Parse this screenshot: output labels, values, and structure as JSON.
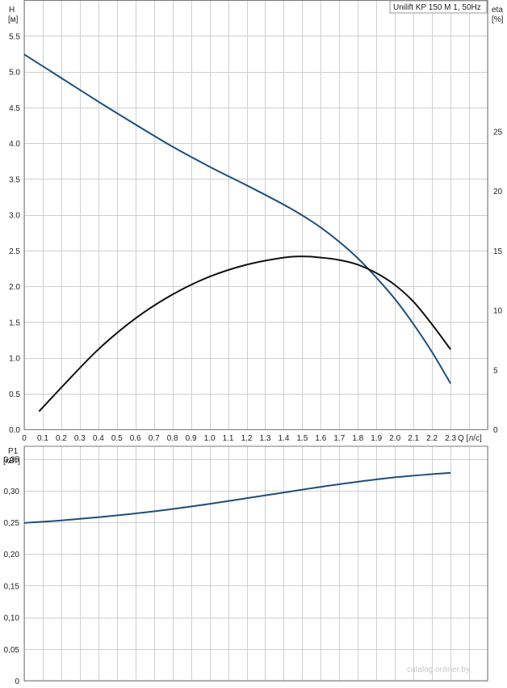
{
  "chart_data": [
    {
      "type": "line",
      "title": "Unilift KP 150 M 1, 50Hz",
      "xlabel": "Q [л/с]",
      "ylabel": "H [м]",
      "y2label": "eta [%]",
      "xlim": [
        0,
        2.5
      ],
      "ylim": [
        0,
        6
      ],
      "y2lim": [
        0,
        36
      ],
      "grid": true,
      "x_ticks": [
        "0",
        "0.1",
        "0.2",
        "0.3",
        "0.4",
        "0.5",
        "0.6",
        "0.7",
        "0.8",
        "0.9",
        "1.0",
        "1.1",
        "1.2",
        "1.3",
        "1.4",
        "1.5",
        "1.6",
        "1.7",
        "1.8",
        "1.9",
        "2.0",
        "2.1",
        "2.2",
        "2.3"
      ],
      "y_ticks": [
        "0.0",
        "0.5",
        "1.0",
        "1.5",
        "2.0",
        "2.5",
        "3.0",
        "3.5",
        "4.0",
        "4.5",
        "5.0",
        "5.5"
      ],
      "y2_ticks": [
        "0",
        "5",
        "10",
        "15",
        "20",
        "25"
      ],
      "series": [
        {
          "axis": "left",
          "color": "#1f4e79",
          "x": [
            0,
            0.2,
            0.4,
            0.6,
            0.8,
            1.0,
            1.2,
            1.4,
            1.5,
            1.6,
            1.7,
            1.8,
            1.9,
            2.0,
            2.1,
            2.2,
            2.3
          ],
          "values": [
            5.24,
            4.91,
            4.58,
            4.26,
            3.95,
            3.67,
            3.41,
            3.14,
            2.99,
            2.82,
            2.62,
            2.39,
            2.12,
            1.82,
            1.47,
            1.08,
            0.64
          ]
        },
        {
          "axis": "right",
          "color": "#111111",
          "x": [
            0.08,
            0.2,
            0.4,
            0.6,
            0.8,
            1.0,
            1.2,
            1.4,
            1.5,
            1.6,
            1.7,
            1.8,
            1.9,
            2.0,
            2.1,
            2.2,
            2.3
          ],
          "values": [
            1.5,
            3.5,
            6.7,
            9.3,
            11.3,
            12.8,
            13.8,
            14.4,
            14.5,
            14.4,
            14.2,
            13.8,
            13.1,
            12.1,
            10.7,
            8.8,
            6.7
          ]
        }
      ]
    },
    {
      "type": "line",
      "xlabel": "",
      "ylabel": "P1 [кВт]",
      "xlim": [
        0,
        2.5
      ],
      "ylim": [
        0,
        0.37
      ],
      "grid": true,
      "y_ticks": [
        "0",
        "0,05",
        "0,10",
        "0,15",
        "0,20",
        "0,25",
        "0,30",
        "0,35"
      ],
      "series": [
        {
          "color": "#1f4e79",
          "x": [
            0,
            0.2,
            0.4,
            0.6,
            0.8,
            1.0,
            1.2,
            1.4,
            1.6,
            1.8,
            2.0,
            2.2,
            2.3
          ],
          "values": [
            0.249,
            0.253,
            0.258,
            0.264,
            0.271,
            0.279,
            0.288,
            0.297,
            0.306,
            0.314,
            0.321,
            0.326,
            0.328
          ]
        }
      ]
    }
  ],
  "labels": {
    "title": "Unilift KP 150 M 1, 50Hz",
    "h_axis_name": "H",
    "h_axis_unit": "[м]",
    "eta_axis_name": "eta",
    "eta_axis_unit": "[%]",
    "q_axis_label": "Q [л/с]",
    "p1_axis_name": "P1",
    "p1_axis_unit": "[кВт]",
    "watermark": "catalog.onliner.by"
  }
}
